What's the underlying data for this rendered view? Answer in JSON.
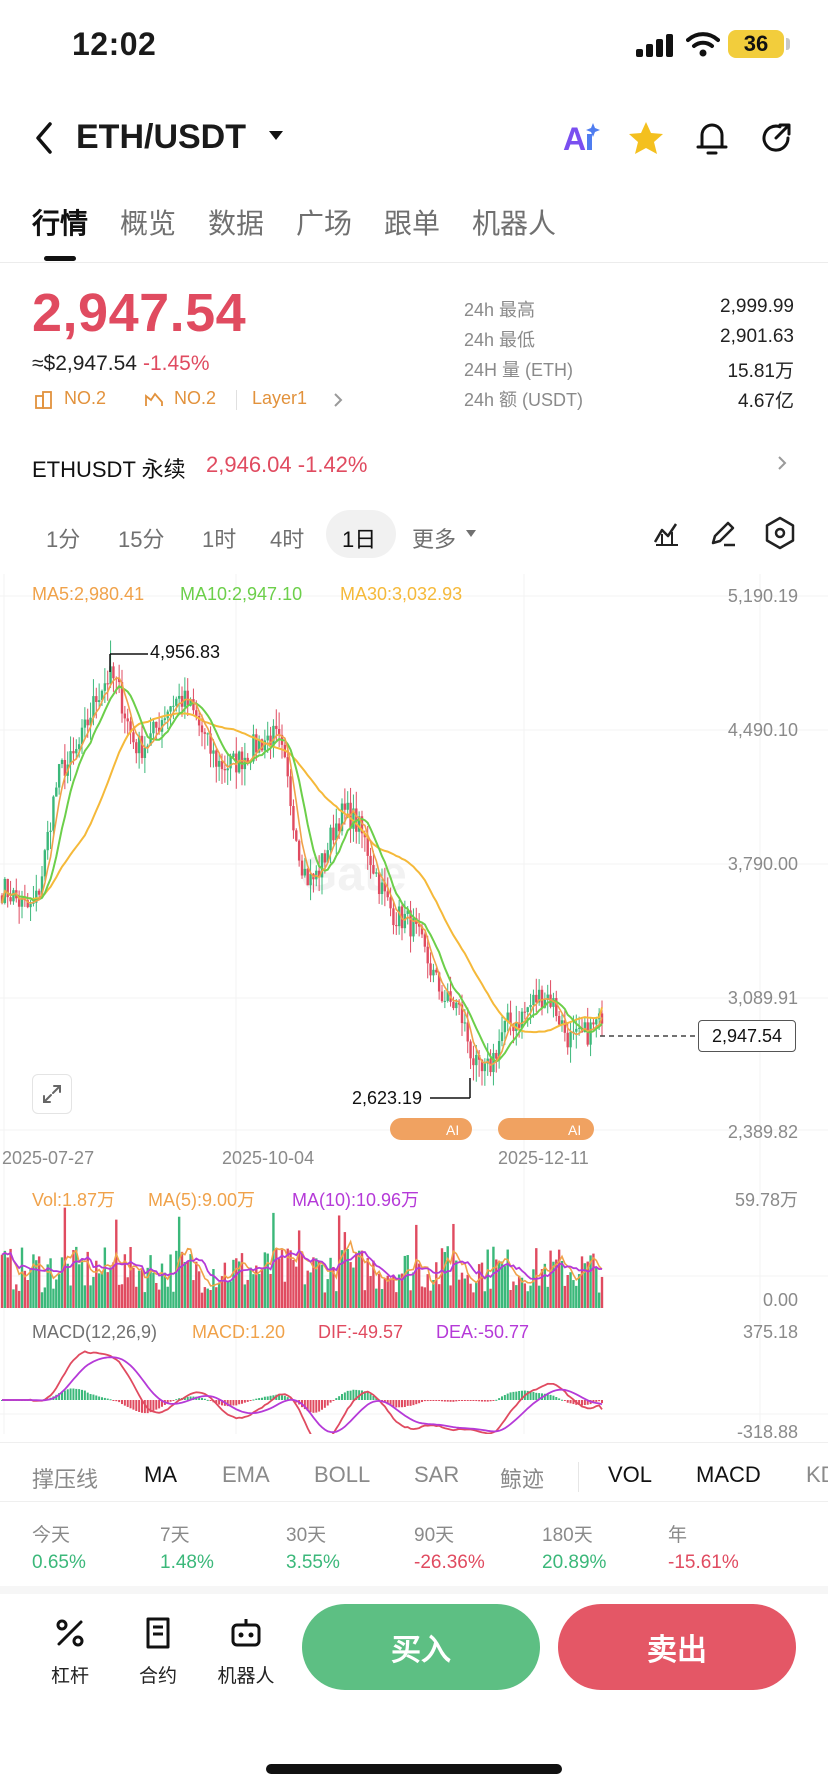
{
  "status_bar": {
    "time": "12:02",
    "battery": "36"
  },
  "header": {
    "pair": "ETH/USDT"
  },
  "tabs": [
    "行情",
    "概览",
    "数据",
    "广场",
    "跟单",
    "机器人"
  ],
  "price": {
    "last": "2,947.54",
    "usd": "≈$2,947.54",
    "change": "-1.45%",
    "rank1": "NO.2",
    "rank2": "NO.2",
    "sector": "Layer1"
  },
  "stats": [
    {
      "label": "24h  最高",
      "value": "2,999.99"
    },
    {
      "label": "24h  最低",
      "value": "2,901.63"
    },
    {
      "label": "24H  量 (ETH)",
      "value": "15.81万"
    },
    {
      "label": "24h  额 (USDT)",
      "value": "4.67亿"
    }
  ],
  "perp": {
    "label": "ETHUSDT 永续",
    "price": "2,946.04",
    "change": "-1.42%"
  },
  "timeframes": [
    "1分",
    "15分",
    "1时",
    "4时",
    "1日",
    "更多"
  ],
  "legend": {
    "ma5": "MA5:2,980.41",
    "ma10": "MA10:2,947.10",
    "ma30": "MA30:3,032.93",
    "vol": "Vol:1.87万",
    "vol_ma5": "MA(5):9.00万",
    "vol_ma10": "MA(10):10.96万",
    "macd_title": "MACD(12,26,9)",
    "macd": "MACD:1.20",
    "dif": "DIF:-49.57",
    "dea": "DEA:-50.77"
  },
  "axis": {
    "y": [
      "5,190.19",
      "4,490.10",
      "3,790.00",
      "3,089.91",
      "2,389.82"
    ],
    "vol_max": "59.78万",
    "vol_min": "0.00",
    "macd_max": "375.18",
    "macd_min": "-318.88",
    "dates": [
      "2025-07-27",
      "2025-10-04",
      "2025-12-11"
    ]
  },
  "annotations": {
    "high": "4,956.83",
    "low": "2,623.19",
    "current": "2,947.54",
    "watermark": "Gate",
    "ai": "AI"
  },
  "chart_data": {
    "type": "candlestick",
    "ylim": [
      2389.82,
      5190.19
    ],
    "high": 4956.83,
    "low": 2623.19,
    "last": 2947.54,
    "ma": {
      "MA5": 2980.41,
      "MA10": 2947.1,
      "MA30": 3032.93
    },
    "dates": [
      "2025-07-27",
      "2025-10-04",
      "2025-12-11"
    ]
  },
  "indicators": [
    "撑压线",
    "MA",
    "EMA",
    "BOLL",
    "SAR",
    "鲸迹",
    "VOL",
    "MACD",
    "KDJ"
  ],
  "performance": [
    {
      "label": "今天",
      "value": "0.65%"
    },
    {
      "label": "7天",
      "value": "1.48%"
    },
    {
      "label": "30天",
      "value": "3.55%"
    },
    {
      "label": "90天",
      "value": "-26.36%"
    },
    {
      "label": "180天",
      "value": "20.89%"
    },
    {
      "label": "年",
      "value": "-15.61%"
    }
  ],
  "bottom": {
    "leverage": "杠杆",
    "contract": "合约",
    "robot": "机器人",
    "buy": "买入",
    "sell": "卖出"
  },
  "colors": {
    "up": "#3bb87a",
    "down": "#e04b60",
    "ma5": "#f0a24a",
    "ma10": "#6ccf4a",
    "ma30": "#f5b93a",
    "dea": "#b53ad8"
  }
}
